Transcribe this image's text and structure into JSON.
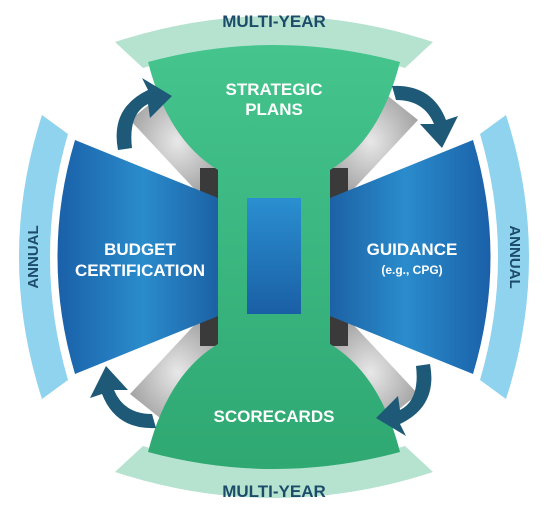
{
  "diagram": {
    "top_ring_label": "MULTI-YEAR",
    "bottom_ring_label": "MULTI-YEAR",
    "left_ring_label": "ANNUAL",
    "right_ring_label": "ANNUAL",
    "top_segment": {
      "line1": "STRATEGIC",
      "line2": "PLANS"
    },
    "bottom_segment": {
      "label": "SCORECARDS"
    },
    "left_segment": {
      "line1": "BUDGET",
      "line2": "CERTIFICATION"
    },
    "right_segment": {
      "line1": "GUIDANCE",
      "line2": "(e.g., CPG)"
    }
  },
  "colors": {
    "green_light": "#b5e3cf",
    "green_main": "#3dbb84",
    "green_dark": "#2a9a6a",
    "blue_light": "#8fd3ee",
    "blue_main": "#1f6fb5",
    "blue_dark": "#134f8a",
    "arrow_dark": "#1e5a78",
    "text_dark": "#1d4c6b",
    "text_white": "#ffffff"
  }
}
